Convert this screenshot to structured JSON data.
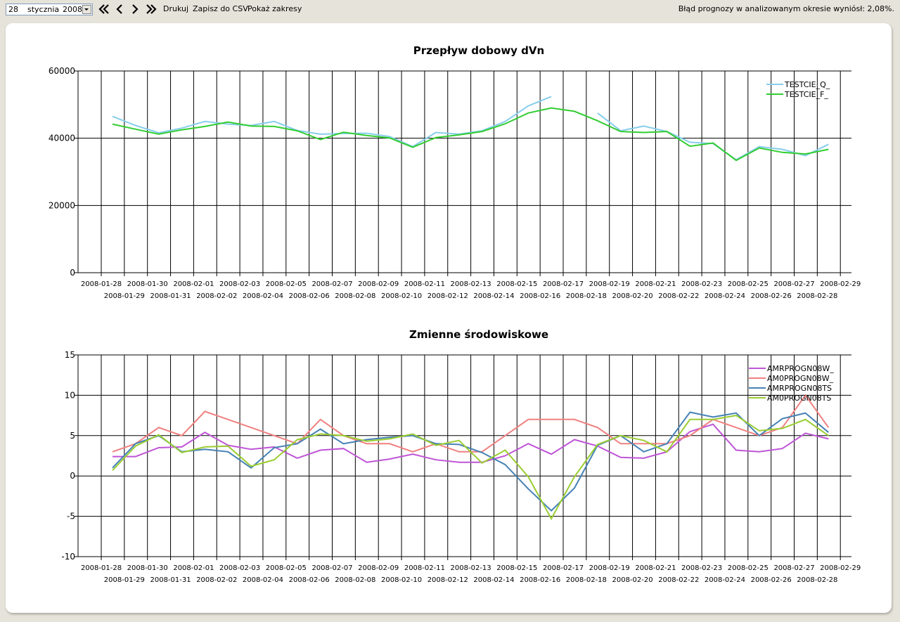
{
  "toolbar": {
    "day": "28",
    "month": "stycznia",
    "year": "2008",
    "links": [
      "Drukuj",
      "Zapisz do CSV",
      "Pokaż zakresy"
    ],
    "status": "Błąd prognozy w analizowanym okresie wyniósł: 2,08%."
  },
  "chart_data": [
    {
      "type": "line",
      "title": "Przepływ dobowy dVn",
      "x": [
        "2008-01-28",
        "2008-01-29",
        "2008-01-30",
        "2008-01-31",
        "2008-02-01",
        "2008-02-02",
        "2008-02-03",
        "2008-02-04",
        "2008-02-05",
        "2008-02-06",
        "2008-02-07",
        "2008-02-08",
        "2008-02-09",
        "2008-02-10",
        "2008-02-11",
        "2008-02-12",
        "2008-02-13",
        "2008-02-14",
        "2008-02-15",
        "2008-02-16",
        "2008-02-17",
        "2008-02-18",
        "2008-02-19",
        "2008-02-20",
        "2008-02-21",
        "2008-02-22",
        "2008-02-23",
        "2008-02-24",
        "2008-02-25",
        "2008-02-26",
        "2008-02-27",
        "2008-02-28",
        "2008-02-29"
      ],
      "ylim": [
        0,
        60000
      ],
      "yticks": [
        0,
        20000,
        40000,
        60000
      ],
      "grid": true,
      "legend": "top-right",
      "series": [
        {
          "name": "TESTCIE_Q_",
          "color": "#87ceeb",
          "values": [
            46500,
            43800,
            41600,
            43000,
            45000,
            44200,
            43800,
            45000,
            42300,
            41200,
            41400,
            41500,
            40500,
            37500,
            41700,
            41200,
            42200,
            45000,
            49600,
            52400,
            null,
            47500,
            42200,
            43600,
            42000,
            38800,
            38400,
            33600,
            37500,
            36700,
            34800,
            38200,
            null
          ]
        },
        {
          "name": "TESTCIE_F_",
          "color": "#32cd32",
          "values": [
            44200,
            42700,
            41200,
            42500,
            43500,
            44800,
            43600,
            43500,
            42200,
            39600,
            41800,
            40800,
            40100,
            37300,
            40200,
            41000,
            42000,
            44300,
            47500,
            49000,
            48000,
            45200,
            42000,
            41700,
            42000,
            37600,
            38600,
            33400,
            37100,
            35800,
            35300,
            36700,
            null
          ]
        }
      ]
    },
    {
      "type": "line",
      "title": "Zmienne środowiskowe",
      "x": [
        "2008-01-28",
        "2008-01-29",
        "2008-01-30",
        "2008-01-31",
        "2008-02-01",
        "2008-02-02",
        "2008-02-03",
        "2008-02-04",
        "2008-02-05",
        "2008-02-06",
        "2008-02-07",
        "2008-02-08",
        "2008-02-09",
        "2008-02-10",
        "2008-02-11",
        "2008-02-12",
        "2008-02-13",
        "2008-02-14",
        "2008-02-15",
        "2008-02-16",
        "2008-02-17",
        "2008-02-18",
        "2008-02-19",
        "2008-02-20",
        "2008-02-21",
        "2008-02-22",
        "2008-02-23",
        "2008-02-24",
        "2008-02-25",
        "2008-02-26",
        "2008-02-27",
        "2008-02-28",
        "2008-02-29"
      ],
      "ylim": [
        -10,
        15
      ],
      "yticks": [
        -10,
        -5,
        0,
        5,
        10,
        15
      ],
      "grid": true,
      "legend": "top-right",
      "series": [
        {
          "name": "AMRPROGN08W_",
          "color": "#bf55d6",
          "values": [
            2.4,
            2.4,
            3.5,
            3.6,
            5.4,
            3.8,
            3.3,
            3.6,
            2.2,
            3.2,
            3.4,
            1.7,
            2.1,
            2.7,
            2.0,
            1.7,
            1.7,
            2.5,
            4.0,
            2.7,
            4.5,
            3.7,
            2.3,
            2.2,
            3.0,
            5.5,
            6.4,
            3.2,
            3.0,
            3.4,
            5.3,
            4.6,
            null
          ]
        },
        {
          "name": "AM0PROGN08W_",
          "color": "#f08080",
          "values": [
            3.0,
            4.0,
            6.0,
            5.0,
            8.0,
            7.0,
            6.0,
            5.0,
            4.0,
            7.0,
            5.0,
            4.0,
            4.0,
            3.0,
            4.0,
            3.0,
            3.0,
            5.0,
            7.0,
            7.0,
            7.0,
            6.0,
            4.0,
            4.0,
            4.0,
            5.0,
            7.0,
            6.0,
            5.0,
            6.0,
            10.0,
            6.0,
            null
          ]
        },
        {
          "name": "AMRPROGN08TS",
          "color": "#4682b4",
          "values": [
            1.0,
            4.0,
            5.0,
            3.0,
            3.3,
            3.0,
            1.0,
            3.5,
            4.0,
            5.8,
            4.0,
            4.5,
            4.8,
            5.0,
            4.0,
            3.9,
            2.9,
            1.4,
            -1.6,
            -4.3,
            -1.5,
            3.8,
            5.0,
            3.0,
            4.0,
            7.9,
            7.3,
            7.8,
            5.0,
            7.1,
            7.8,
            5.4,
            null
          ]
        },
        {
          "name": "AM0PROGN08TS",
          "color": "#9acd32",
          "values": [
            0.7,
            3.7,
            5.1,
            2.9,
            3.6,
            3.7,
            1.2,
            2.0,
            4.5,
            5.2,
            5.0,
            4.3,
            4.6,
            5.2,
            3.8,
            4.4,
            1.6,
            3.2,
            -0.1,
            -5.3,
            -0.1,
            3.9,
            5.0,
            4.4,
            3.0,
            7.0,
            7.0,
            7.5,
            5.6,
            5.9,
            7.0,
            5.0,
            null
          ]
        }
      ]
    }
  ]
}
